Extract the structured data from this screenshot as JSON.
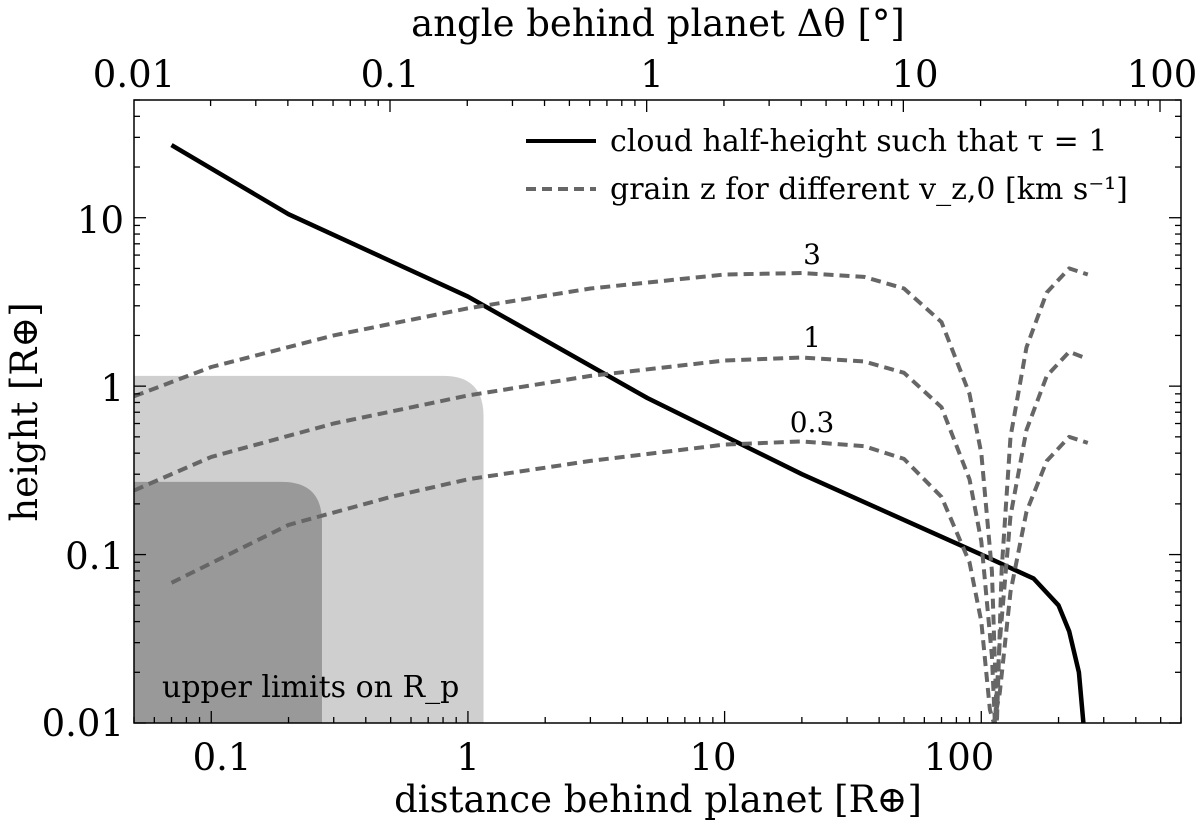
{
  "chart_data": {
    "type": "line",
    "x_scale": "log",
    "y_scale": "log",
    "xlim": [
      0.05,
      600
    ],
    "ylim": [
      0.01,
      50
    ],
    "xlabel": "distance behind planet [R⊕]",
    "ylabel": "height [R⊕]",
    "top_axis": {
      "label": "angle behind planet Δθ [°]",
      "ticks": [
        0.01,
        0.1,
        1,
        10,
        100
      ],
      "tick_labels": [
        "0.01",
        "0.1",
        "1",
        "10",
        "100"
      ],
      "x_per_degree": 4.97
    },
    "x_ticks": [
      0.1,
      1,
      10,
      100
    ],
    "x_tick_labels": [
      "0.1",
      "1",
      "10",
      "100"
    ],
    "y_ticks": [
      0.01,
      0.1,
      1,
      10
    ],
    "y_tick_labels": [
      "0.01",
      "0.1",
      "1",
      "10"
    ],
    "legend": {
      "placement": "top-right",
      "entries": [
        {
          "label": "cloud half-height such that τ = 1",
          "style": "solid"
        },
        {
          "label": "grain z for different v_z,0 [km s⁻¹]",
          "style": "dashed"
        }
      ]
    },
    "series": [
      {
        "name": "cloud half-height such that τ = 1",
        "style": "solid",
        "color": "#000000",
        "x": [
          0.07,
          0.2,
          1,
          5,
          20,
          100,
          160,
          200,
          220,
          240,
          250
        ],
        "y": [
          27,
          10.5,
          3.4,
          0.85,
          0.3,
          0.1,
          0.072,
          0.05,
          0.035,
          0.02,
          0.01
        ]
      },
      {
        "name": "3",
        "style": "dashed",
        "color": "#666666",
        "label": "3",
        "x": [
          0.05,
          0.1,
          0.3,
          1,
          3,
          10,
          20,
          35,
          50,
          70,
          90,
          100,
          110,
          115,
          120,
          130,
          150,
          180,
          220,
          260
        ],
        "y": [
          0.87,
          1.3,
          2,
          2.9,
          3.8,
          4.6,
          4.7,
          4.45,
          3.8,
          2.4,
          0.9,
          0.4,
          0.08,
          0.01,
          0.08,
          0.5,
          1.7,
          3.6,
          5.0,
          4.6
        ]
      },
      {
        "name": "1",
        "style": "dashed",
        "color": "#666666",
        "label": "1",
        "x": [
          0.05,
          0.1,
          0.3,
          1,
          3,
          10,
          20,
          35,
          50,
          70,
          90,
          100,
          110,
          113,
          118,
          130,
          150,
          180,
          220,
          260
        ],
        "y": [
          0.24,
          0.38,
          0.6,
          0.88,
          1.15,
          1.42,
          1.48,
          1.4,
          1.2,
          0.75,
          0.28,
          0.12,
          0.025,
          0.01,
          0.03,
          0.17,
          0.55,
          1.15,
          1.6,
          1.45
        ]
      },
      {
        "name": "0.3",
        "style": "dashed",
        "color": "#666666",
        "label": "0.3",
        "x": [
          0.07,
          0.2,
          0.5,
          1,
          3,
          10,
          20,
          35,
          50,
          70,
          90,
          100,
          108,
          112,
          118,
          130,
          150,
          180,
          220,
          260
        ],
        "y": [
          0.068,
          0.15,
          0.22,
          0.28,
          0.36,
          0.45,
          0.47,
          0.44,
          0.37,
          0.22,
          0.09,
          0.04,
          0.012,
          0.01,
          0.015,
          0.06,
          0.18,
          0.36,
          0.5,
          0.46
        ]
      }
    ],
    "shaded_regions": [
      {
        "name": "upper limit (light)",
        "color": "#cfcfcf",
        "x_max": 1.15,
        "y_max": 1.15
      },
      {
        "name": "upper limit (dark)",
        "color": "#999999",
        "x_max": 0.27,
        "y_max": 0.27
      }
    ],
    "annotation": "upper limits on R_p"
  }
}
